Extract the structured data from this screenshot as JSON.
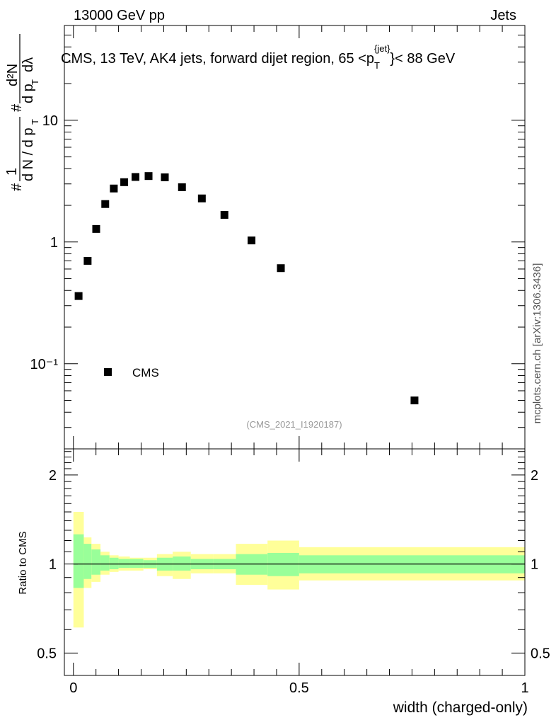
{
  "header": {
    "energy_label": "13000 GeV pp",
    "category_label": "Jets"
  },
  "side_label": "mcplots.cern.ch [arXiv:1306.3436]",
  "colors": {
    "marker": "#000000",
    "band_inner": "#99ff99",
    "band_outer": "#ffff99",
    "axis": "#000000",
    "analysis_text": "#999999"
  },
  "chart_data": [
    {
      "type": "scatter",
      "title": "CMS, 13 TeV, AK4 jets, forward dijet region, 65 <p_T^{jet}< 88 GeV",
      "title_parts": {
        "pre": "CMS, 13 TeV, AK4 jets, forward dijet region, 65 <p",
        "sub": "T",
        "sup": "{jet}",
        "post": "}< 88 GeV"
      },
      "ylabel": "1/(dN/dp_T) d²N/(dp_T dλ)",
      "ylabel_parts": {
        "hash": "#",
        "frac1_num": "1",
        "frac1_den": "d N / d p",
        "sub": "T",
        "frac2_num": "d²N",
        "frac2_den": "d p",
        "den_tail": "dλ"
      },
      "xlabel": "",
      "yscale": "log",
      "ylim": [
        0.02,
        60
      ],
      "xlim": [
        -0.02,
        1.0
      ],
      "y_tick_labels": [
        "10⁻¹",
        "1",
        "10"
      ],
      "y_tick_values": [
        0.1,
        1,
        10
      ],
      "series": [
        {
          "name": "CMS",
          "x": [
            0.0115,
            0.0315,
            0.0505,
            0.0705,
            0.0895,
            0.1125,
            0.1375,
            0.1665,
            0.2025,
            0.2405,
            0.2845,
            0.3345,
            0.3945,
            0.4595,
            0.7555
          ],
          "y": [
            0.36,
            0.7,
            1.28,
            2.05,
            2.75,
            3.1,
            3.42,
            3.48,
            3.4,
            2.82,
            2.28,
            1.67,
            1.03,
            0.61,
            0.05
          ]
        }
      ],
      "legend": {
        "entry": "CMS",
        "position": "bottom-left"
      },
      "analysis_label": "(CMS_2021_I1920187)"
    },
    {
      "type": "area",
      "title": "",
      "ylabel": "Ratio to CMS",
      "xlabel": "width (charged-only)",
      "yscale": "log",
      "ylim": [
        0.42,
        2.45
      ],
      "xlim": [
        -0.02,
        1.0
      ],
      "y_tick_labels": [
        "0.5",
        "1",
        "2"
      ],
      "y_tick_values": [
        0.5,
        1,
        2
      ],
      "x_tick_labels": [
        "0",
        "0.5",
        "1"
      ],
      "x_tick_values": [
        0,
        0.5,
        1
      ],
      "reference_line": 1,
      "bins": [
        {
          "lo": 0.0,
          "hi": 0.023,
          "inner": [
            0.83,
            1.26
          ],
          "outer": [
            0.61,
            1.5
          ]
        },
        {
          "lo": 0.023,
          "hi": 0.04,
          "inner": [
            0.89,
            1.17
          ],
          "outer": [
            0.83,
            1.23
          ]
        },
        {
          "lo": 0.04,
          "hi": 0.06,
          "inner": [
            0.92,
            1.12
          ],
          "outer": [
            0.87,
            1.17
          ]
        },
        {
          "lo": 0.06,
          "hi": 0.08,
          "inner": [
            0.95,
            1.07
          ],
          "outer": [
            0.92,
            1.1
          ]
        },
        {
          "lo": 0.08,
          "hi": 0.1,
          "inner": [
            0.96,
            1.05
          ],
          "outer": [
            0.94,
            1.07
          ]
        },
        {
          "lo": 0.1,
          "hi": 0.125,
          "inner": [
            0.97,
            1.04
          ],
          "outer": [
            0.95,
            1.06
          ]
        },
        {
          "lo": 0.125,
          "hi": 0.155,
          "inner": [
            0.97,
            1.04
          ],
          "outer": [
            0.95,
            1.05
          ]
        },
        {
          "lo": 0.155,
          "hi": 0.185,
          "inner": [
            0.97,
            1.03
          ],
          "outer": [
            0.96,
            1.05
          ]
        },
        {
          "lo": 0.185,
          "hi": 0.22,
          "inner": [
            0.95,
            1.05
          ],
          "outer": [
            0.91,
            1.08
          ]
        },
        {
          "lo": 0.22,
          "hi": 0.26,
          "inner": [
            0.95,
            1.06
          ],
          "outer": [
            0.89,
            1.1
          ]
        },
        {
          "lo": 0.26,
          "hi": 0.31,
          "inner": [
            0.96,
            1.04
          ],
          "outer": [
            0.93,
            1.08
          ]
        },
        {
          "lo": 0.31,
          "hi": 0.36,
          "inner": [
            0.96,
            1.04
          ],
          "outer": [
            0.93,
            1.08
          ]
        },
        {
          "lo": 0.36,
          "hi": 0.43,
          "inner": [
            0.92,
            1.08
          ],
          "outer": [
            0.85,
            1.17
          ]
        },
        {
          "lo": 0.43,
          "hi": 0.5,
          "inner": [
            0.91,
            1.09
          ],
          "outer": [
            0.82,
            1.2
          ]
        },
        {
          "lo": 0.5,
          "hi": 1.0,
          "inner": [
            0.93,
            1.07
          ],
          "outer": [
            0.88,
            1.14
          ]
        }
      ]
    }
  ]
}
